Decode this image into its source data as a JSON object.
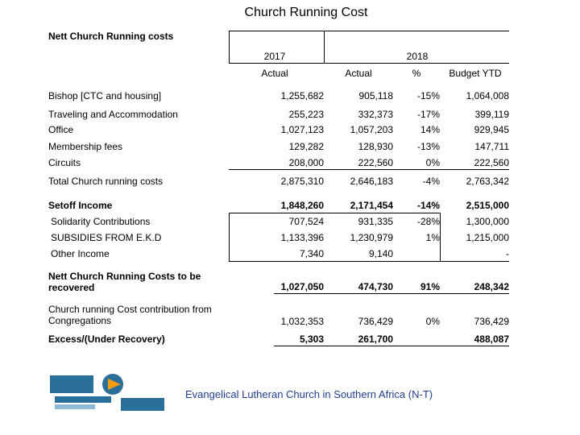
{
  "header": {
    "title": "Church Running Cost",
    "subtitle": "Nett Church Running costs"
  },
  "table": {
    "year_headers": [
      "2017",
      "2018"
    ],
    "column_headers": [
      "Actual",
      "Actual",
      "%",
      "Budget YTD"
    ],
    "rows": [
      {
        "label": "Bishop [CTC and housing]",
        "values": [
          "1,255,682",
          "905,118",
          "-15%",
          "1,064,008"
        ]
      },
      {
        "label": "Traveling and Accommodation",
        "values": [
          "255,223",
          "332,373",
          "-17%",
          "399,119"
        ]
      },
      {
        "label": "Office",
        "values": [
          "1,027,123",
          "1,057,203",
          "14%",
          "929,945"
        ]
      },
      {
        "label": "Membership fees",
        "values": [
          "129,282",
          "128,930",
          "-13%",
          "147,711"
        ]
      },
      {
        "label": "Circuits",
        "values": [
          "208,000",
          "222,560",
          "0%",
          "222,560"
        ]
      },
      {
        "label": "Total Church running costs",
        "values": [
          "2,875,310",
          "2,646,183",
          "-4%",
          "2,763,342"
        ]
      },
      {
        "label": "Setoff Income",
        "values": [
          "1,848,260",
          "2,171,454",
          "-14%",
          "2,515,000"
        ]
      },
      {
        "label": "Solidarity Contributions",
        "values": [
          "707,524",
          "931,335",
          "-28%",
          "1,300,000"
        ]
      },
      {
        "label": "SUBSIDIES FROM E.K.D",
        "values": [
          "1,133,396",
          "1,230,979",
          "1%",
          "1,215,000"
        ]
      },
      {
        "label": "Other Income",
        "values": [
          "7,340",
          "9,140",
          null,
          "-"
        ]
      },
      {
        "label": "Nett Church Running Costs to be recovered",
        "values": [
          "1,027,050",
          "474,730",
          "91%",
          "248,342"
        ]
      },
      {
        "label": "Church running Cost contribution from Congregations",
        "values": [
          "1,032,353",
          "736,429",
          "0%",
          "736,429"
        ]
      },
      {
        "label": "Excess/(Under Recovery)",
        "values": [
          "5,303",
          "261,700",
          null,
          "488,087"
        ]
      }
    ]
  },
  "footer": {
    "organization": "Evangelical Lutheran Church in Southern Africa (N-T)"
  }
}
